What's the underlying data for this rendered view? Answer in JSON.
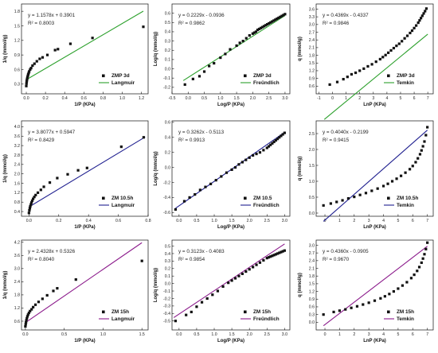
{
  "chart_data": [
    {
      "type": "scatter",
      "xlabel": "1/P (KPa)",
      "ylabel": "1/q (mmol/g)",
      "xlim": [
        -0.05,
        1.27
      ],
      "ylim": [
        0.1,
        1.95
      ],
      "xticks": [
        0.0,
        0.2,
        0.4,
        0.6,
        0.8,
        1.0,
        1.2
      ],
      "xtick_labels": [
        "0.0",
        "0.2",
        "0.4",
        "0.6",
        "0.8",
        "1.0",
        "1.2"
      ],
      "yticks": [
        0.3,
        0.6,
        0.9,
        1.2,
        1.5,
        1.8
      ],
      "ytick_labels": [
        "0.3",
        "0.6",
        "0.9",
        "1.2",
        "1.5",
        "1.8"
      ],
      "equation": "y = 1.1578x + 0.3901",
      "r2": "R² = 0.8003",
      "legend": {
        "data": "ZMP 3d",
        "fit": "Langmuir",
        "position": "bottom-right"
      },
      "fit_color": "#2ca02c",
      "fit": {
        "slope": 1.1578,
        "intercept": 0.3901,
        "x_range": [
          0.0,
          1.22
        ]
      },
      "x": [
        0.0,
        0.002,
        0.004,
        0.006,
        0.009,
        0.012,
        0.016,
        0.02,
        0.025,
        0.03,
        0.04,
        0.05,
        0.065,
        0.085,
        0.11,
        0.14,
        0.17,
        0.22,
        0.3,
        0.33,
        0.46,
        0.69,
        1.22
      ],
      "y": [
        0.26,
        0.31,
        0.35,
        0.38,
        0.41,
        0.44,
        0.47,
        0.5,
        0.53,
        0.56,
        0.6,
        0.63,
        0.68,
        0.72,
        0.77,
        0.82,
        0.85,
        0.9,
        1.0,
        1.02,
        1.13,
        1.25,
        1.48
      ]
    },
    {
      "type": "scatter",
      "xlabel": "Log/P (KPa)",
      "ylabel": "Log/q (mmol/g)",
      "xlim": [
        -0.5,
        3.15
      ],
      "ylim": [
        -0.27,
        0.7
      ],
      "xticks": [
        -0.5,
        0.0,
        0.5,
        1.0,
        1.5,
        2.0,
        2.5,
        3.0
      ],
      "xtick_labels": [
        "-0.5",
        "0.0",
        "0.5",
        "1.0",
        "1.5",
        "2.0",
        "2.5",
        "3.0"
      ],
      "yticks": [
        -0.2,
        -0.1,
        0.0,
        0.1,
        0.2,
        0.3,
        0.4,
        0.5,
        0.6
      ],
      "ytick_labels": [
        "-0.2",
        "-0.1",
        "0.0",
        "0.1",
        "0.2",
        "0.3",
        "0.4",
        "0.5",
        "0.6"
      ],
      "equation": "y = 0.2229x - 0.0936",
      "r2": "R² = 0.9862",
      "legend": {
        "data": "ZMP 3d",
        "fit": "Freündlich",
        "position": "bottom-right"
      },
      "fit_color": "#2ca02c",
      "fit": {
        "slope": 0.2229,
        "intercept": -0.0936,
        "x_range": [
          -0.15,
          3.0
        ]
      },
      "x": [
        -0.1,
        0.15,
        0.35,
        0.5,
        0.65,
        0.8,
        1.0,
        1.15,
        1.3,
        1.5,
        1.6,
        1.7,
        1.8,
        1.9,
        2.0,
        2.05,
        2.1,
        2.15,
        2.2,
        2.25,
        2.3,
        2.35,
        2.4,
        2.45,
        2.5,
        2.55,
        2.6,
        2.65,
        2.7,
        2.75,
        2.8,
        2.85,
        2.9,
        2.95,
        3.0
      ],
      "y": [
        -0.17,
        -0.11,
        -0.08,
        -0.03,
        0.03,
        0.06,
        0.12,
        0.16,
        0.21,
        0.25,
        0.28,
        0.3,
        0.33,
        0.36,
        0.38,
        0.39,
        0.4,
        0.42,
        0.43,
        0.44,
        0.45,
        0.46,
        0.47,
        0.48,
        0.49,
        0.5,
        0.51,
        0.52,
        0.53,
        0.54,
        0.55,
        0.56,
        0.57,
        0.58,
        0.59
      ]
    },
    {
      "type": "scatter",
      "xlabel": "LnP (KPa)",
      "ylabel": "q (mmol/g)",
      "xlim": [
        -1.2,
        7.4
      ],
      "ylim": [
        0.3,
        3.8
      ],
      "xticks": [
        -1,
        0,
        1,
        2,
        3,
        4,
        5,
        6,
        7
      ],
      "xtick_labels": [
        "-1",
        "0",
        "1",
        "2",
        "3",
        "4",
        "5",
        "6",
        "7"
      ],
      "yticks": [
        0.6,
        0.9,
        1.2,
        1.5,
        1.8,
        2.1,
        2.4,
        2.7,
        3.0,
        3.3,
        3.6
      ],
      "ytick_labels": [
        "0.6",
        "0.9",
        "1.2",
        "1.5",
        "1.8",
        "2.1",
        "2.4",
        "2.7",
        "3.0",
        "3.3",
        "3.6"
      ],
      "equation": "y = 0.4369x - 0.4337",
      "r2": "R² = 0.9846",
      "legend": {
        "data": "ZMP 3d",
        "fit": "Temkin",
        "position": "bottom-right"
      },
      "fit_color": "#2ca02c",
      "fit": {
        "slope": 0.4369,
        "intercept": -0.4337,
        "x_range": [
          -0.6,
          7.0
        ]
      },
      "x": [
        -0.2,
        0.35,
        0.8,
        1.1,
        1.4,
        1.7,
        2.0,
        2.3,
        2.6,
        2.9,
        3.2,
        3.5,
        3.7,
        3.9,
        4.1,
        4.3,
        4.5,
        4.7,
        4.9,
        5.1,
        5.3,
        5.5,
        5.7,
        5.85,
        6.0,
        6.15,
        6.3,
        6.4,
        6.5,
        6.6,
        6.7,
        6.8,
        6.9
      ],
      "y": [
        0.66,
        0.76,
        0.87,
        0.96,
        1.06,
        1.12,
        1.2,
        1.28,
        1.37,
        1.45,
        1.55,
        1.65,
        1.73,
        1.81,
        1.9,
        1.99,
        2.08,
        2.17,
        2.25,
        2.35,
        2.46,
        2.56,
        2.67,
        2.76,
        2.86,
        2.96,
        3.07,
        3.16,
        3.25,
        3.34,
        3.43,
        3.52,
        3.62
      ]
    },
    {
      "type": "scatter",
      "xlabel": "1/P (KPa)",
      "ylabel": "1/q (mmol/g)",
      "xlim": [
        -0.05,
        0.8
      ],
      "ylim": [
        0.2,
        4.25
      ],
      "xticks": [
        0.0,
        0.2,
        0.4,
        0.6,
        0.8
      ],
      "xtick_labels": [
        "0.0",
        "0.2",
        "0.4",
        "0.6",
        "0.8"
      ],
      "yticks": [
        0.4,
        0.8,
        1.2,
        1.6,
        2.0,
        2.4,
        2.8,
        3.2,
        3.6,
        4.0
      ],
      "ytick_labels": [
        "0.4",
        "0.8",
        "1.2",
        "1.6",
        "2.0",
        "2.4",
        "2.8",
        "3.2",
        "3.6",
        "4.0"
      ],
      "equation": "y = 3.8077x + 0.5947",
      "r2": "R² = 0.8429",
      "legend": {
        "data": "ZM 10.5h",
        "fit": "Langmuir",
        "position": "bottom-right"
      },
      "fit_color": "#1f1f8f",
      "fit": {
        "slope": 3.8077,
        "intercept": 0.5947,
        "x_range": [
          0.0,
          0.78
        ]
      },
      "x": [
        0.0,
        0.003,
        0.006,
        0.009,
        0.013,
        0.017,
        0.022,
        0.028,
        0.036,
        0.045,
        0.06,
        0.08,
        0.1,
        0.14,
        0.19,
        0.26,
        0.33,
        0.39,
        0.62,
        0.77
      ],
      "y": [
        0.34,
        0.45,
        0.54,
        0.62,
        0.7,
        0.78,
        0.86,
        0.94,
        1.02,
        1.1,
        1.2,
        1.32,
        1.45,
        1.63,
        1.82,
        1.98,
        2.15,
        2.25,
        3.15,
        3.55
      ]
    },
    {
      "type": "scatter",
      "xlabel": "Log/P (KPa)",
      "ylabel": "Log/q (mmol/g)",
      "xlim": [
        -0.2,
        3.15
      ],
      "ylim": [
        -0.65,
        0.62
      ],
      "xticks": [
        0.0,
        0.5,
        1.0,
        1.5,
        2.0,
        2.5,
        3.0
      ],
      "xtick_labels": [
        "0.0",
        "0.5",
        "1.0",
        "1.5",
        "2.0",
        "2.5",
        "3.0"
      ],
      "yticks": [
        -0.6,
        -0.4,
        -0.2,
        0.0,
        0.2,
        0.4,
        0.6
      ],
      "ytick_labels": [
        "-0.6",
        "-0.4",
        "-0.2",
        "0.0",
        "0.2",
        "0.4",
        "0.6"
      ],
      "equation": "y = 0.3262x - 0.5113",
      "r2": "R² = 0.9913",
      "legend": {
        "data": "ZM 10.5",
        "fit": "Freündlich",
        "position": "bottom-right"
      },
      "fit_color": "#1f1f8f",
      "fit": {
        "slope": 0.3262,
        "intercept": -0.5113,
        "x_range": [
          -0.1,
          3.0
        ]
      },
      "x": [
        -0.1,
        0.15,
        0.3,
        0.45,
        0.6,
        0.75,
        0.9,
        1.05,
        1.2,
        1.35,
        1.5,
        1.6,
        1.7,
        1.8,
        1.9,
        2.0,
        2.1,
        2.2,
        2.3,
        2.4,
        2.5,
        2.55,
        2.6,
        2.65,
        2.7,
        2.75,
        2.8,
        2.85,
        2.9,
        2.95,
        3.0
      ],
      "y": [
        -0.56,
        -0.45,
        -0.4,
        -0.36,
        -0.3,
        -0.26,
        -0.22,
        -0.17,
        -0.12,
        -0.07,
        -0.03,
        0.0,
        0.04,
        0.07,
        0.1,
        0.13,
        0.16,
        0.18,
        0.2,
        0.23,
        0.26,
        0.28,
        0.3,
        0.32,
        0.34,
        0.36,
        0.38,
        0.4,
        0.42,
        0.44,
        0.46
      ]
    },
    {
      "type": "scatter",
      "xlabel": "LnP (KPa)",
      "ylabel": "q (mmol/g)",
      "xlim": [
        -0.6,
        7.4
      ],
      "ylim": [
        -0.1,
        2.9
      ],
      "xticks": [
        0,
        1,
        2,
        3,
        4,
        5,
        6,
        7
      ],
      "xtick_labels": [
        "0",
        "1",
        "2",
        "3",
        "4",
        "5",
        "6",
        "7"
      ],
      "yticks": [
        0.0,
        0.5,
        1.0,
        1.5,
        2.0,
        2.5
      ],
      "ytick_labels": [
        "0.0",
        "0.5",
        "1.0",
        "1.5",
        "2.0",
        "2.5"
      ],
      "equation": "y = 0.4040x - 0.2199",
      "r2": "R² = 0.9415",
      "legend": {
        "data": "ZM 10.5h",
        "fit": "Temkin",
        "position": "bottom-right"
      },
      "fit_color": "#1f1f8f",
      "fit": {
        "slope": 0.404,
        "intercept": -0.2199,
        "x_range": [
          -0.1,
          7.0
        ]
      },
      "x": [
        -0.1,
        0.4,
        0.8,
        1.2,
        1.6,
        2.0,
        2.4,
        2.8,
        3.2,
        3.6,
        4.0,
        4.3,
        4.6,
        4.9,
        5.2,
        5.5,
        5.8,
        6.0,
        6.2,
        6.35,
        6.5,
        6.6,
        6.7,
        6.8,
        6.9,
        7.0
      ],
      "y": [
        0.24,
        0.3,
        0.35,
        0.4,
        0.46,
        0.51,
        0.57,
        0.63,
        0.7,
        0.77,
        0.85,
        0.92,
        1.0,
        1.08,
        1.17,
        1.27,
        1.38,
        1.48,
        1.6,
        1.72,
        1.85,
        1.97,
        2.1,
        2.25,
        2.45,
        2.7
      ]
    },
    {
      "type": "scatter",
      "xlabel": "1/P (KPa)",
      "ylabel": "1/q (mmol/g)",
      "xlim": [
        -0.05,
        1.58
      ],
      "ylim": [
        0.2,
        4.3
      ],
      "xticks": [
        0.0,
        0.5,
        1.0,
        1.5
      ],
      "xtick_labels": [
        "0.0",
        "0.5",
        "1.0",
        "1.5"
      ],
      "yticks": [
        0.6,
        1.2,
        1.8,
        2.4,
        3.0,
        3.6,
        4.2
      ],
      "ytick_labels": [
        "0.6",
        "1.2",
        "1.8",
        "2.4",
        "3.0",
        "3.6",
        "4.2"
      ],
      "equation": "y = 2.4328x + 0.5326",
      "r2": "R² = 0.8040",
      "legend": {
        "data": "ZM 15h",
        "fit": "Langmuir",
        "position": "bottom-right"
      },
      "fit_color": "#8b1a8b",
      "fit": {
        "slope": 2.4328,
        "intercept": 0.5326,
        "x_range": [
          0.0,
          1.5
        ]
      },
      "x": [
        0.0,
        0.004,
        0.008,
        0.013,
        0.019,
        0.026,
        0.035,
        0.046,
        0.06,
        0.08,
        0.1,
        0.13,
        0.17,
        0.22,
        0.28,
        0.36,
        0.41,
        0.65,
        1.5
      ],
      "y": [
        0.36,
        0.46,
        0.55,
        0.64,
        0.73,
        0.82,
        0.9,
        0.98,
        1.06,
        1.14,
        1.24,
        1.35,
        1.48,
        1.62,
        1.78,
        1.98,
        2.1,
        2.5,
        3.35
      ]
    },
    {
      "type": "scatter",
      "xlabel": "Log/P (KPa)",
      "ylabel": "Log/q (mmol/g)",
      "xlim": [
        -0.2,
        3.15
      ],
      "ylim": [
        -0.62,
        0.58
      ],
      "xticks": [
        0.0,
        0.5,
        1.0,
        1.5,
        2.0,
        2.5,
        3.0
      ],
      "xtick_labels": [
        "0.0",
        "0.5",
        "1.0",
        "1.5",
        "2.0",
        "2.5",
        "3.0"
      ],
      "yticks": [
        -0.5,
        -0.4,
        -0.3,
        -0.2,
        -0.1,
        0.0,
        0.1,
        0.2,
        0.3,
        0.4,
        0.5
      ],
      "ytick_labels": [
        "-0.5",
        "-0.4",
        "-0.3",
        "-0.2",
        "-0.1",
        "0.0",
        "0.1",
        "0.2",
        "0.3",
        "0.4",
        "0.5"
      ],
      "equation": "y = 0.3123x - 0.4083",
      "r2": "R² = 0.9854",
      "legend": {
        "data": "ZM 15h",
        "fit": "Freündlich",
        "position": "bottom-right"
      },
      "fit_color": "#8b1a8b",
      "fit": {
        "slope": 0.3123,
        "intercept": -0.4083,
        "x_range": [
          -0.15,
          3.0
        ]
      },
      "x": [
        -0.1,
        0.2,
        0.35,
        0.5,
        0.65,
        0.8,
        0.95,
        1.1,
        1.25,
        1.4,
        1.5,
        1.6,
        1.7,
        1.8,
        1.9,
        2.0,
        2.1,
        2.2,
        2.3,
        2.4,
        2.5,
        2.55,
        2.6,
        2.65,
        2.7,
        2.75,
        2.8,
        2.85,
        2.9,
        2.95,
        3.0
      ],
      "y": [
        -0.5,
        -0.42,
        -0.38,
        -0.31,
        -0.25,
        -0.2,
        -0.15,
        -0.1,
        -0.04,
        0.01,
        0.04,
        0.07,
        0.1,
        0.13,
        0.16,
        0.19,
        0.22,
        0.25,
        0.28,
        0.31,
        0.34,
        0.35,
        0.36,
        0.37,
        0.38,
        0.39,
        0.4,
        0.41,
        0.42,
        0.43,
        0.44
      ]
    },
    {
      "type": "scatter",
      "xlabel": "LnP (KPa)",
      "ylabel": "q (mmol/g)",
      "xlim": [
        -0.6,
        7.4
      ],
      "ylim": [
        -0.3,
        3.2
      ],
      "xticks": [
        0,
        1,
        2,
        3,
        4,
        5,
        6,
        7
      ],
      "xtick_labels": [
        "0",
        "1",
        "2",
        "3",
        "4",
        "5",
        "6",
        "7"
      ],
      "yticks": [
        0.0,
        0.3,
        0.6,
        0.9,
        1.2,
        1.5,
        1.8,
        2.1,
        2.4,
        2.7,
        3.0
      ],
      "ytick_labels": [
        "0.0",
        "0.3",
        "0.6",
        "0.9",
        "1.2",
        "1.5",
        "1.8",
        "2.1",
        "2.4",
        "2.7",
        "3.0"
      ],
      "equation": "y = 0.4360x - 0.0905",
      "r2": "R² = 0.9670",
      "legend": {
        "data": "ZM 15h",
        "fit": "Temkin",
        "position": "bottom-right"
      },
      "fit_color": "#8b1a8b",
      "fit": {
        "slope": 0.436,
        "intercept": -0.0905,
        "x_range": [
          -0.1,
          7.0
        ]
      },
      "x": [
        -0.1,
        0.6,
        1.0,
        1.4,
        1.8,
        2.2,
        2.6,
        3.0,
        3.4,
        3.8,
        4.1,
        4.4,
        4.7,
        5.0,
        5.3,
        5.6,
        5.9,
        6.1,
        6.3,
        6.45,
        6.6,
        6.7,
        6.8,
        6.9,
        7.0
      ],
      "y": [
        0.3,
        0.4,
        0.45,
        0.5,
        0.56,
        0.62,
        0.69,
        0.76,
        0.84,
        0.93,
        1.01,
        1.1,
        1.2,
        1.31,
        1.43,
        1.56,
        1.72,
        1.85,
        2.0,
        2.15,
        2.32,
        2.48,
        2.65,
        2.85,
        3.1
      ]
    }
  ]
}
